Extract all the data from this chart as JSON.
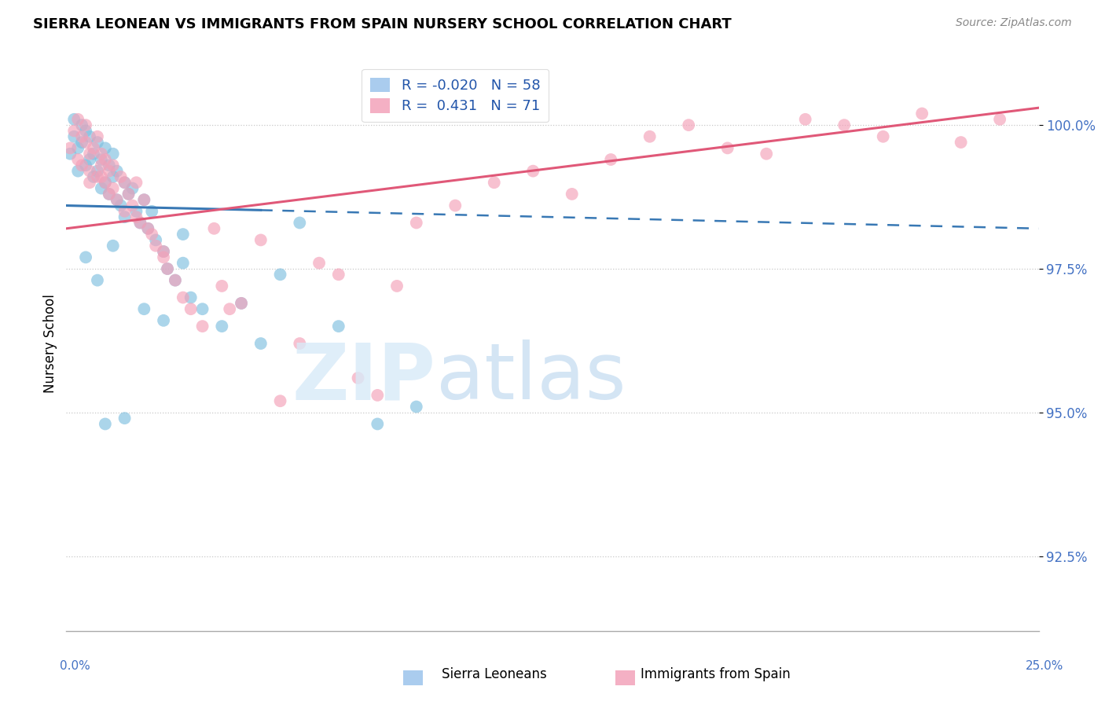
{
  "title": "SIERRA LEONEAN VS IMMIGRANTS FROM SPAIN NURSERY SCHOOL CORRELATION CHART",
  "source": "Source: ZipAtlas.com",
  "ylabel": "Nursery School",
  "yticks": [
    92.5,
    95.0,
    97.5,
    100.0
  ],
  "ytick_labels": [
    "92.5%",
    "95.0%",
    "97.5%",
    "100.0%"
  ],
  "xlim": [
    0.0,
    25.0
  ],
  "ylim": [
    91.2,
    101.2
  ],
  "blue_color": "#7fbfdf",
  "pink_color": "#f4a0b8",
  "blue_line_color": "#3878b4",
  "pink_line_color": "#e05878",
  "blue_line_y0": 98.6,
  "blue_line_y25": 98.2,
  "pink_line_y0": 98.2,
  "pink_line_y25": 100.3,
  "blue_solid_x_end": 5.0,
  "blue_scatter_x": [
    0.1,
    0.2,
    0.2,
    0.3,
    0.3,
    0.4,
    0.4,
    0.5,
    0.5,
    0.6,
    0.6,
    0.7,
    0.7,
    0.8,
    0.8,
    0.9,
    0.9,
    1.0,
    1.0,
    1.1,
    1.1,
    1.2,
    1.2,
    1.3,
    1.3,
    1.4,
    1.5,
    1.5,
    1.6,
    1.7,
    1.8,
    1.9,
    2.0,
    2.1,
    2.2,
    2.3,
    2.5,
    2.6,
    2.8,
    3.0,
    3.2,
    3.5,
    4.0,
    4.5,
    5.0,
    5.5,
    6.0,
    7.0,
    8.0,
    9.0,
    1.0,
    1.5,
    2.0,
    2.5,
    3.0,
    0.5,
    0.8,
    1.2
  ],
  "blue_scatter_y": [
    99.5,
    99.8,
    100.1,
    99.6,
    99.2,
    99.7,
    100.0,
    99.3,
    99.9,
    99.4,
    99.8,
    99.1,
    99.5,
    99.2,
    99.7,
    98.9,
    99.4,
    99.0,
    99.6,
    98.8,
    99.3,
    99.1,
    99.5,
    98.7,
    99.2,
    98.6,
    99.0,
    98.4,
    98.8,
    98.9,
    98.5,
    98.3,
    98.7,
    98.2,
    98.5,
    98.0,
    97.8,
    97.5,
    97.3,
    98.1,
    97.0,
    96.8,
    96.5,
    96.9,
    96.2,
    97.4,
    98.3,
    96.5,
    94.8,
    95.1,
    94.8,
    94.9,
    96.8,
    96.6,
    97.6,
    97.7,
    97.3,
    97.9
  ],
  "pink_scatter_x": [
    0.1,
    0.2,
    0.3,
    0.3,
    0.4,
    0.4,
    0.5,
    0.5,
    0.6,
    0.6,
    0.7,
    0.8,
    0.8,
    0.9,
    0.9,
    1.0,
    1.0,
    1.1,
    1.2,
    1.2,
    1.3,
    1.4,
    1.5,
    1.5,
    1.6,
    1.7,
    1.8,
    1.9,
    2.0,
    2.1,
    2.2,
    2.3,
    2.5,
    2.6,
    2.8,
    3.0,
    3.2,
    3.5,
    4.0,
    4.5,
    5.0,
    6.0,
    7.0,
    8.0,
    9.0,
    10.0,
    11.0,
    12.0,
    13.0,
    14.0,
    15.0,
    16.0,
    17.0,
    18.0,
    19.0,
    20.0,
    21.0,
    22.0,
    23.0,
    24.0,
    3.8,
    5.5,
    6.5,
    7.5,
    1.8,
    2.5,
    4.2,
    8.5,
    0.6,
    1.1,
    0.9
  ],
  "pink_scatter_y": [
    99.6,
    99.9,
    99.4,
    100.1,
    99.8,
    99.3,
    99.7,
    100.0,
    99.5,
    99.2,
    99.6,
    99.1,
    99.8,
    99.3,
    99.5,
    99.0,
    99.4,
    99.2,
    98.9,
    99.3,
    98.7,
    99.1,
    98.5,
    99.0,
    98.8,
    98.6,
    98.4,
    98.3,
    98.7,
    98.2,
    98.1,
    97.9,
    97.7,
    97.5,
    97.3,
    97.0,
    96.8,
    96.5,
    97.2,
    96.9,
    98.0,
    96.2,
    97.4,
    95.3,
    98.3,
    98.6,
    99.0,
    99.2,
    98.8,
    99.4,
    99.8,
    100.0,
    99.6,
    99.5,
    100.1,
    100.0,
    99.8,
    100.2,
    99.7,
    100.1,
    98.2,
    95.2,
    97.6,
    95.6,
    99.0,
    97.8,
    96.8,
    97.2,
    99.0,
    98.8,
    99.1
  ]
}
